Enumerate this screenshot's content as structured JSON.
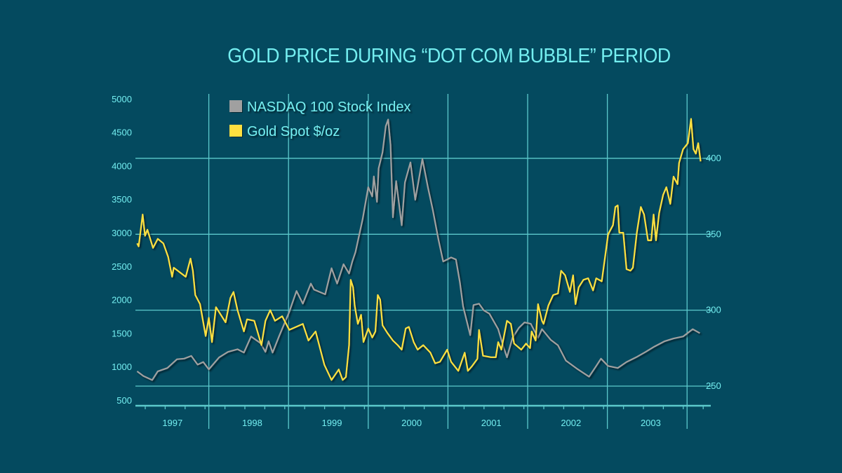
{
  "chart_data": {
    "type": "line",
    "title": "GOLD PRICE DURING “DOT COM BUBBLE” PERIOD",
    "x_tick_labels": [
      "1997",
      "1998",
      "1999",
      "2000",
      "2001",
      "2002",
      "2003"
    ],
    "y_left_tick_labels": [
      "500",
      "1000",
      "1500",
      "2000",
      "2500",
      "3000",
      "3500",
      "4000",
      "4500",
      "5000"
    ],
    "y_right_tick_labels": [
      "250",
      "300",
      "350",
      "400"
    ],
    "ylim_left": [
      500,
      5000
    ],
    "ylim_right": [
      236.6,
      438.7
    ],
    "xlim": [
      1997.0,
      2004.3
    ],
    "grid": true,
    "legend_position": "top-left",
    "series": [
      {
        "name": "NASDAQ 100 Stock Index",
        "axis": "left",
        "color": "#a0a0a0",
        "points": [
          [
            1997.1,
            940
          ],
          [
            1997.18,
            870
          ],
          [
            1997.29,
            810
          ],
          [
            1997.36,
            940
          ],
          [
            1997.48,
            990
          ],
          [
            1997.6,
            1120
          ],
          [
            1997.69,
            1130
          ],
          [
            1997.78,
            1170
          ],
          [
            1997.86,
            1040
          ],
          [
            1997.93,
            1080
          ],
          [
            1998.0,
            970
          ],
          [
            1998.13,
            1150
          ],
          [
            1998.24,
            1230
          ],
          [
            1998.36,
            1270
          ],
          [
            1998.44,
            1220
          ],
          [
            1998.53,
            1460
          ],
          [
            1998.65,
            1360
          ],
          [
            1998.71,
            1230
          ],
          [
            1998.75,
            1390
          ],
          [
            1998.8,
            1220
          ],
          [
            1998.88,
            1460
          ],
          [
            1999.01,
            1830
          ],
          [
            1999.1,
            2140
          ],
          [
            1999.18,
            1950
          ],
          [
            1999.28,
            2250
          ],
          [
            1999.32,
            2160
          ],
          [
            1999.46,
            2090
          ],
          [
            1999.54,
            2480
          ],
          [
            1999.61,
            2250
          ],
          [
            1999.69,
            2540
          ],
          [
            1999.76,
            2400
          ],
          [
            1999.8,
            2580
          ],
          [
            1999.84,
            2720
          ],
          [
            1999.93,
            3210
          ],
          [
            2000.0,
            3690
          ],
          [
            2000.05,
            3550
          ],
          [
            2000.07,
            3850
          ],
          [
            2000.11,
            3470
          ],
          [
            2000.13,
            3970
          ],
          [
            2000.18,
            4210
          ],
          [
            2000.22,
            4600
          ],
          [
            2000.25,
            4700
          ],
          [
            2000.28,
            4320
          ],
          [
            2000.31,
            3240
          ],
          [
            2000.35,
            3780
          ],
          [
            2000.42,
            3120
          ],
          [
            2000.46,
            3760
          ],
          [
            2000.53,
            4060
          ],
          [
            2000.59,
            3500
          ],
          [
            2000.68,
            4110
          ],
          [
            2000.75,
            3680
          ],
          [
            2000.81,
            3350
          ],
          [
            2000.88,
            2910
          ],
          [
            2000.94,
            2580
          ],
          [
            2001.04,
            2640
          ],
          [
            2001.1,
            2610
          ],
          [
            2001.15,
            2270
          ],
          [
            2001.19,
            1910
          ],
          [
            2001.28,
            1480
          ],
          [
            2001.32,
            1930
          ],
          [
            2001.39,
            1950
          ],
          [
            2001.45,
            1850
          ],
          [
            2001.52,
            1800
          ],
          [
            2001.63,
            1570
          ],
          [
            2001.69,
            1330
          ],
          [
            2001.74,
            1150
          ],
          [
            2001.81,
            1440
          ],
          [
            2001.89,
            1590
          ],
          [
            2001.96,
            1670
          ],
          [
            2002.04,
            1650
          ],
          [
            2002.13,
            1440
          ],
          [
            2002.18,
            1570
          ],
          [
            2002.29,
            1410
          ],
          [
            2002.38,
            1330
          ],
          [
            2002.48,
            1100
          ],
          [
            2002.63,
            970
          ],
          [
            2002.77,
            860
          ],
          [
            2002.86,
            1020
          ],
          [
            2002.92,
            1130
          ],
          [
            2003.01,
            1020
          ],
          [
            2003.13,
            990
          ],
          [
            2003.24,
            1080
          ],
          [
            2003.36,
            1150
          ],
          [
            2003.48,
            1230
          ],
          [
            2003.59,
            1310
          ],
          [
            2003.72,
            1390
          ],
          [
            2003.83,
            1430
          ],
          [
            2003.95,
            1460
          ],
          [
            2004.07,
            1570
          ],
          [
            2004.16,
            1510
          ]
        ]
      },
      {
        "name": "Gold Spot $/oz",
        "axis": "right",
        "color": "#ffe040",
        "points": [
          [
            1997.1,
            344
          ],
          [
            1997.12,
            342
          ],
          [
            1997.17,
            363
          ],
          [
            1997.2,
            349
          ],
          [
            1997.23,
            353
          ],
          [
            1997.3,
            341
          ],
          [
            1997.36,
            347
          ],
          [
            1997.43,
            344
          ],
          [
            1997.49,
            335
          ],
          [
            1997.54,
            322
          ],
          [
            1997.56,
            328
          ],
          [
            1997.71,
            322
          ],
          [
            1997.77,
            334
          ],
          [
            1997.8,
            326
          ],
          [
            1997.83,
            310
          ],
          [
            1997.89,
            304
          ],
          [
            1997.96,
            283
          ],
          [
            1998.0,
            295
          ],
          [
            1998.04,
            279
          ],
          [
            1998.09,
            302
          ],
          [
            1998.21,
            292
          ],
          [
            1998.27,
            308
          ],
          [
            1998.31,
            312
          ],
          [
            1998.36,
            300
          ],
          [
            1998.44,
            286
          ],
          [
            1998.48,
            294
          ],
          [
            1998.57,
            293
          ],
          [
            1998.61,
            286
          ],
          [
            1998.66,
            277
          ],
          [
            1998.71,
            293
          ],
          [
            1998.77,
            300
          ],
          [
            1998.83,
            293
          ],
          [
            1998.92,
            296
          ],
          [
            1999.01,
            287
          ],
          [
            1999.18,
            291
          ],
          [
            1999.25,
            280
          ],
          [
            1999.34,
            286
          ],
          [
            1999.45,
            264
          ],
          [
            1999.54,
            254
          ],
          [
            1999.63,
            261
          ],
          [
            1999.68,
            254
          ],
          [
            1999.72,
            256
          ],
          [
            1999.76,
            277
          ],
          [
            1999.78,
            320
          ],
          [
            1999.81,
            315
          ],
          [
            1999.83,
            303
          ],
          [
            1999.87,
            291
          ],
          [
            1999.91,
            297
          ],
          [
            1999.94,
            279
          ],
          [
            2000.0,
            288
          ],
          [
            2000.05,
            282
          ],
          [
            2000.09,
            286
          ],
          [
            2000.12,
            310
          ],
          [
            2000.15,
            307
          ],
          [
            2000.18,
            290
          ],
          [
            2000.24,
            285
          ],
          [
            2000.31,
            280
          ],
          [
            2000.37,
            277
          ],
          [
            2000.42,
            274
          ],
          [
            2000.47,
            288
          ],
          [
            2000.51,
            289
          ],
          [
            2000.57,
            279
          ],
          [
            2000.62,
            274
          ],
          [
            2000.69,
            277
          ],
          [
            2000.78,
            272
          ],
          [
            2000.84,
            265
          ],
          [
            2000.9,
            266
          ],
          [
            2000.99,
            274
          ],
          [
            2001.04,
            266
          ],
          [
            2001.13,
            260
          ],
          [
            2001.21,
            272
          ],
          [
            2001.25,
            260
          ],
          [
            2001.3,
            263
          ],
          [
            2001.37,
            268
          ],
          [
            2001.39,
            287
          ],
          [
            2001.44,
            270
          ],
          [
            2001.54,
            269
          ],
          [
            2001.6,
            269
          ],
          [
            2001.63,
            279
          ],
          [
            2001.67,
            274
          ],
          [
            2001.74,
            293
          ],
          [
            2001.79,
            291
          ],
          [
            2001.83,
            278
          ],
          [
            2001.92,
            274
          ],
          [
            2001.98,
            278
          ],
          [
            2002.03,
            275
          ],
          [
            2002.05,
            286
          ],
          [
            2002.1,
            280
          ],
          [
            2002.13,
            304
          ],
          [
            2002.18,
            293
          ],
          [
            2002.2,
            291
          ],
          [
            2002.26,
            303
          ],
          [
            2002.32,
            310
          ],
          [
            2002.38,
            311
          ],
          [
            2002.42,
            326
          ],
          [
            2002.47,
            323
          ],
          [
            2002.53,
            312
          ],
          [
            2002.57,
            323
          ],
          [
            2002.6,
            304
          ],
          [
            2002.64,
            315
          ],
          [
            2002.7,
            320
          ],
          [
            2002.76,
            321
          ],
          [
            2002.82,
            313
          ],
          [
            2002.86,
            321
          ],
          [
            2002.93,
            319
          ],
          [
            2003.01,
            350
          ],
          [
            2003.07,
            356
          ],
          [
            2003.1,
            368
          ],
          [
            2003.13,
            369
          ],
          [
            2003.15,
            351
          ],
          [
            2003.2,
            351
          ],
          [
            2003.24,
            327
          ],
          [
            2003.29,
            326
          ],
          [
            2003.32,
            328
          ],
          [
            2003.37,
            351
          ],
          [
            2003.42,
            368
          ],
          [
            2003.46,
            363
          ],
          [
            2003.51,
            346
          ],
          [
            2003.55,
            346
          ],
          [
            2003.58,
            363
          ],
          [
            2003.61,
            346
          ],
          [
            2003.65,
            364
          ],
          [
            2003.7,
            376
          ],
          [
            2003.74,
            381
          ],
          [
            2003.79,
            370
          ],
          [
            2003.83,
            388
          ],
          [
            2003.88,
            383
          ],
          [
            2003.9,
            397
          ],
          [
            2003.95,
            406
          ],
          [
            2004.01,
            410
          ],
          [
            2004.05,
            426
          ],
          [
            2004.08,
            406
          ],
          [
            2004.11,
            403
          ],
          [
            2004.14,
            410
          ],
          [
            2004.17,
            398
          ]
        ]
      }
    ]
  }
}
